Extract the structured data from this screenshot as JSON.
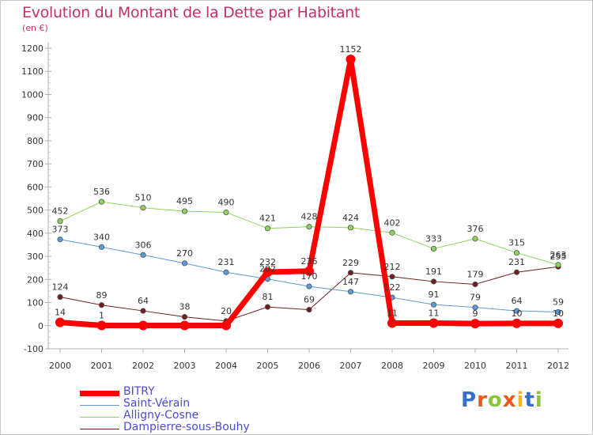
{
  "title": "Evolution du Montant de la Dette par Habitant",
  "subtitle": "(en €)",
  "logo": {
    "text": "Proxiti",
    "letters": [
      "P",
      "r",
      "o",
      "x",
      "i",
      "t",
      "i"
    ],
    "colors": [
      "#3a6fc8",
      "#e85a1e",
      "#8cc43c",
      "#e85a1e",
      "#f0b81e",
      "#3a6fc8",
      "#8cc43c"
    ]
  },
  "chart_data": {
    "type": "line",
    "title": "Evolution du Montant de la Dette par Habitant",
    "ylabel": "(en €)",
    "xlabel": "",
    "x": [
      "2000",
      "2001",
      "2002",
      "2003",
      "2004",
      "2005",
      "2006",
      "2007",
      "2008",
      "2009",
      "2010",
      "2011",
      "2012"
    ],
    "ylim": [
      -100,
      1200
    ],
    "yticks": [
      -100,
      0,
      100,
      200,
      300,
      400,
      500,
      600,
      700,
      800,
      900,
      1000,
      1100,
      1200
    ],
    "grid": false,
    "legend": "bottom-left",
    "series": [
      {
        "name": "Dampierre-sous-Bouhy",
        "color": "#6e1e1e",
        "width": 1,
        "values": [
          124,
          89,
          64,
          38,
          20,
          81,
          69,
          229,
          212,
          191,
          179,
          231,
          255
        ]
      },
      {
        "name": "Alligny-Cosne",
        "color": "#8cd45a",
        "width": 1,
        "values": [
          452,
          536,
          510,
          495,
          490,
          421,
          428,
          424,
          402,
          333,
          376,
          315,
          263
        ]
      },
      {
        "name": "Saint-Vérain",
        "color": "#5a9ad6",
        "width": 1,
        "values": [
          373,
          340,
          306,
          270,
          231,
          202,
          170,
          147,
          122,
          91,
          79,
          64,
          59
        ]
      },
      {
        "name": "BITRY",
        "color": "#ff0000",
        "width": 7,
        "values": [
          14,
          1,
          1,
          1,
          1,
          232,
          236,
          1152,
          11,
          11,
          9,
          10,
          10
        ]
      }
    ],
    "data_labels": [
      {
        "series": "Dampierre-sous-Bouhy",
        "labels": [
          "124",
          "89",
          "64",
          "38",
          "20",
          "81",
          "69",
          "229",
          "212",
          "191",
          "179",
          "231",
          "255"
        ]
      },
      {
        "series": "Alligny-Cosne",
        "labels": [
          "452",
          "536",
          "510",
          "495",
          "490",
          "421",
          "428",
          "424",
          "402",
          "333",
          "376",
          "315",
          "263"
        ]
      },
      {
        "series": "Saint-Vérain",
        "labels": [
          "373",
          "340",
          "306",
          "270",
          "231",
          "202",
          "170",
          "147",
          "122",
          "91",
          "79",
          "64",
          "59"
        ]
      },
      {
        "series": "BITRY",
        "labels": [
          "14",
          "1",
          "",
          "",
          "",
          "232",
          "236",
          "1152",
          "11",
          "11",
          "9",
          "10",
          "10"
        ]
      }
    ],
    "legend_order": [
      "BITRY",
      "Saint-Vérain",
      "Alligny-Cosne",
      "Dampierre-sous-Bouhy"
    ]
  }
}
